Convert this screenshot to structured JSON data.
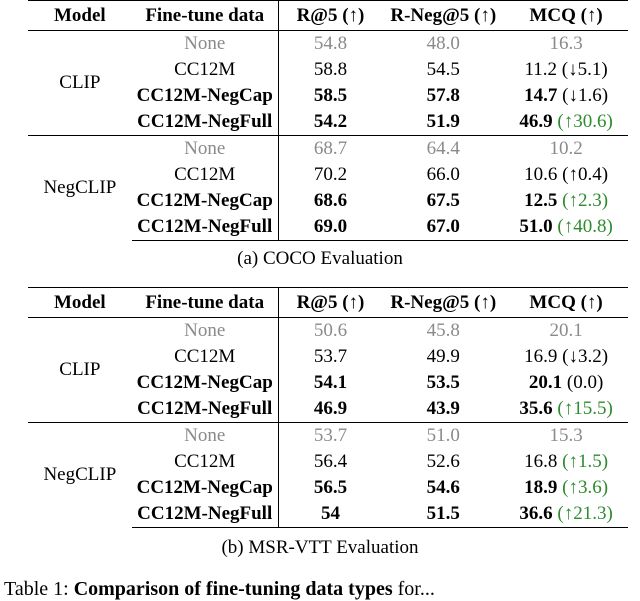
{
  "headers": {
    "model": "Model",
    "finetune": "Fine-tune data",
    "r5": "R@5 (↑)",
    "rneg5": "R-Neg@5 (↑)",
    "mcq": "MCQ (↑)"
  },
  "coco": {
    "caption": "(a) COCO Evaluation",
    "clip": {
      "model": "CLIP",
      "rows": [
        {
          "ft": "None",
          "r5": "54.8",
          "rneg": "48.0",
          "mcq": "16.3",
          "delta": ""
        },
        {
          "ft": "CC12M",
          "r5": "58.8",
          "rneg": "54.5",
          "mcq": "11.2",
          "delta": "(↓5.1)"
        },
        {
          "ft": "CC12M-NegCap",
          "r5": "58.5",
          "rneg": "57.8",
          "mcq": "14.7",
          "delta": "(↓1.6)"
        },
        {
          "ft": "CC12M-NegFull",
          "r5": "54.2",
          "rneg": "51.9",
          "mcq": "46.9",
          "delta": "(↑30.6)"
        }
      ]
    },
    "negclip": {
      "model": "NegCLIP",
      "rows": [
        {
          "ft": "None",
          "r5": "68.7",
          "rneg": "64.4",
          "mcq": "10.2",
          "delta": ""
        },
        {
          "ft": "CC12M",
          "r5": "70.2",
          "rneg": "66.0",
          "mcq": "10.6",
          "delta": "(↑0.4)"
        },
        {
          "ft": "CC12M-NegCap",
          "r5": "68.6",
          "rneg": "67.5",
          "mcq": "12.5",
          "delta": "(↑2.3)"
        },
        {
          "ft": "CC12M-NegFull",
          "r5": "69.0",
          "rneg": "67.0",
          "mcq": "51.0",
          "delta": "(↑40.8)"
        }
      ]
    }
  },
  "msrvtt": {
    "caption": "(b) MSR-VTT Evaluation",
    "clip": {
      "model": "CLIP",
      "rows": [
        {
          "ft": "None",
          "r5": "50.6",
          "rneg": "45.8",
          "mcq": "20.1",
          "delta": ""
        },
        {
          "ft": "CC12M",
          "r5": "53.7",
          "rneg": "49.9",
          "mcq": "16.9",
          "delta": "(↓3.2)"
        },
        {
          "ft": "CC12M-NegCap",
          "r5": "54.1",
          "rneg": "53.5",
          "mcq": "20.1",
          "delta": "(0.0)"
        },
        {
          "ft": "CC12M-NegFull",
          "r5": "46.9",
          "rneg": "43.9",
          "mcq": "35.6",
          "delta": "(↑15.5)"
        }
      ]
    },
    "negclip": {
      "model": "NegCLIP",
      "rows": [
        {
          "ft": "None",
          "r5": "53.7",
          "rneg": "51.0",
          "mcq": "15.3",
          "delta": ""
        },
        {
          "ft": "CC12M",
          "r5": "56.4",
          "rneg": "52.6",
          "mcq": "16.8",
          "delta": "(↑1.5)"
        },
        {
          "ft": "CC12M-NegCap",
          "r5": "56.5",
          "rneg": "54.6",
          "mcq": "18.9",
          "delta": "(↑3.6)"
        },
        {
          "ft": "CC12M-NegFull",
          "r5": "54",
          "rneg": "51.5",
          "mcq": "36.6",
          "delta": "(↑21.3)"
        }
      ]
    }
  },
  "bottom_text": {
    "prefix": "Table 1: ",
    "bold": "Comparison of fine-tuning data types",
    "suffix": " for..."
  },
  "colors": {
    "gray_baseline": "#8a8a8a",
    "green_up": "#2e8b2e"
  }
}
